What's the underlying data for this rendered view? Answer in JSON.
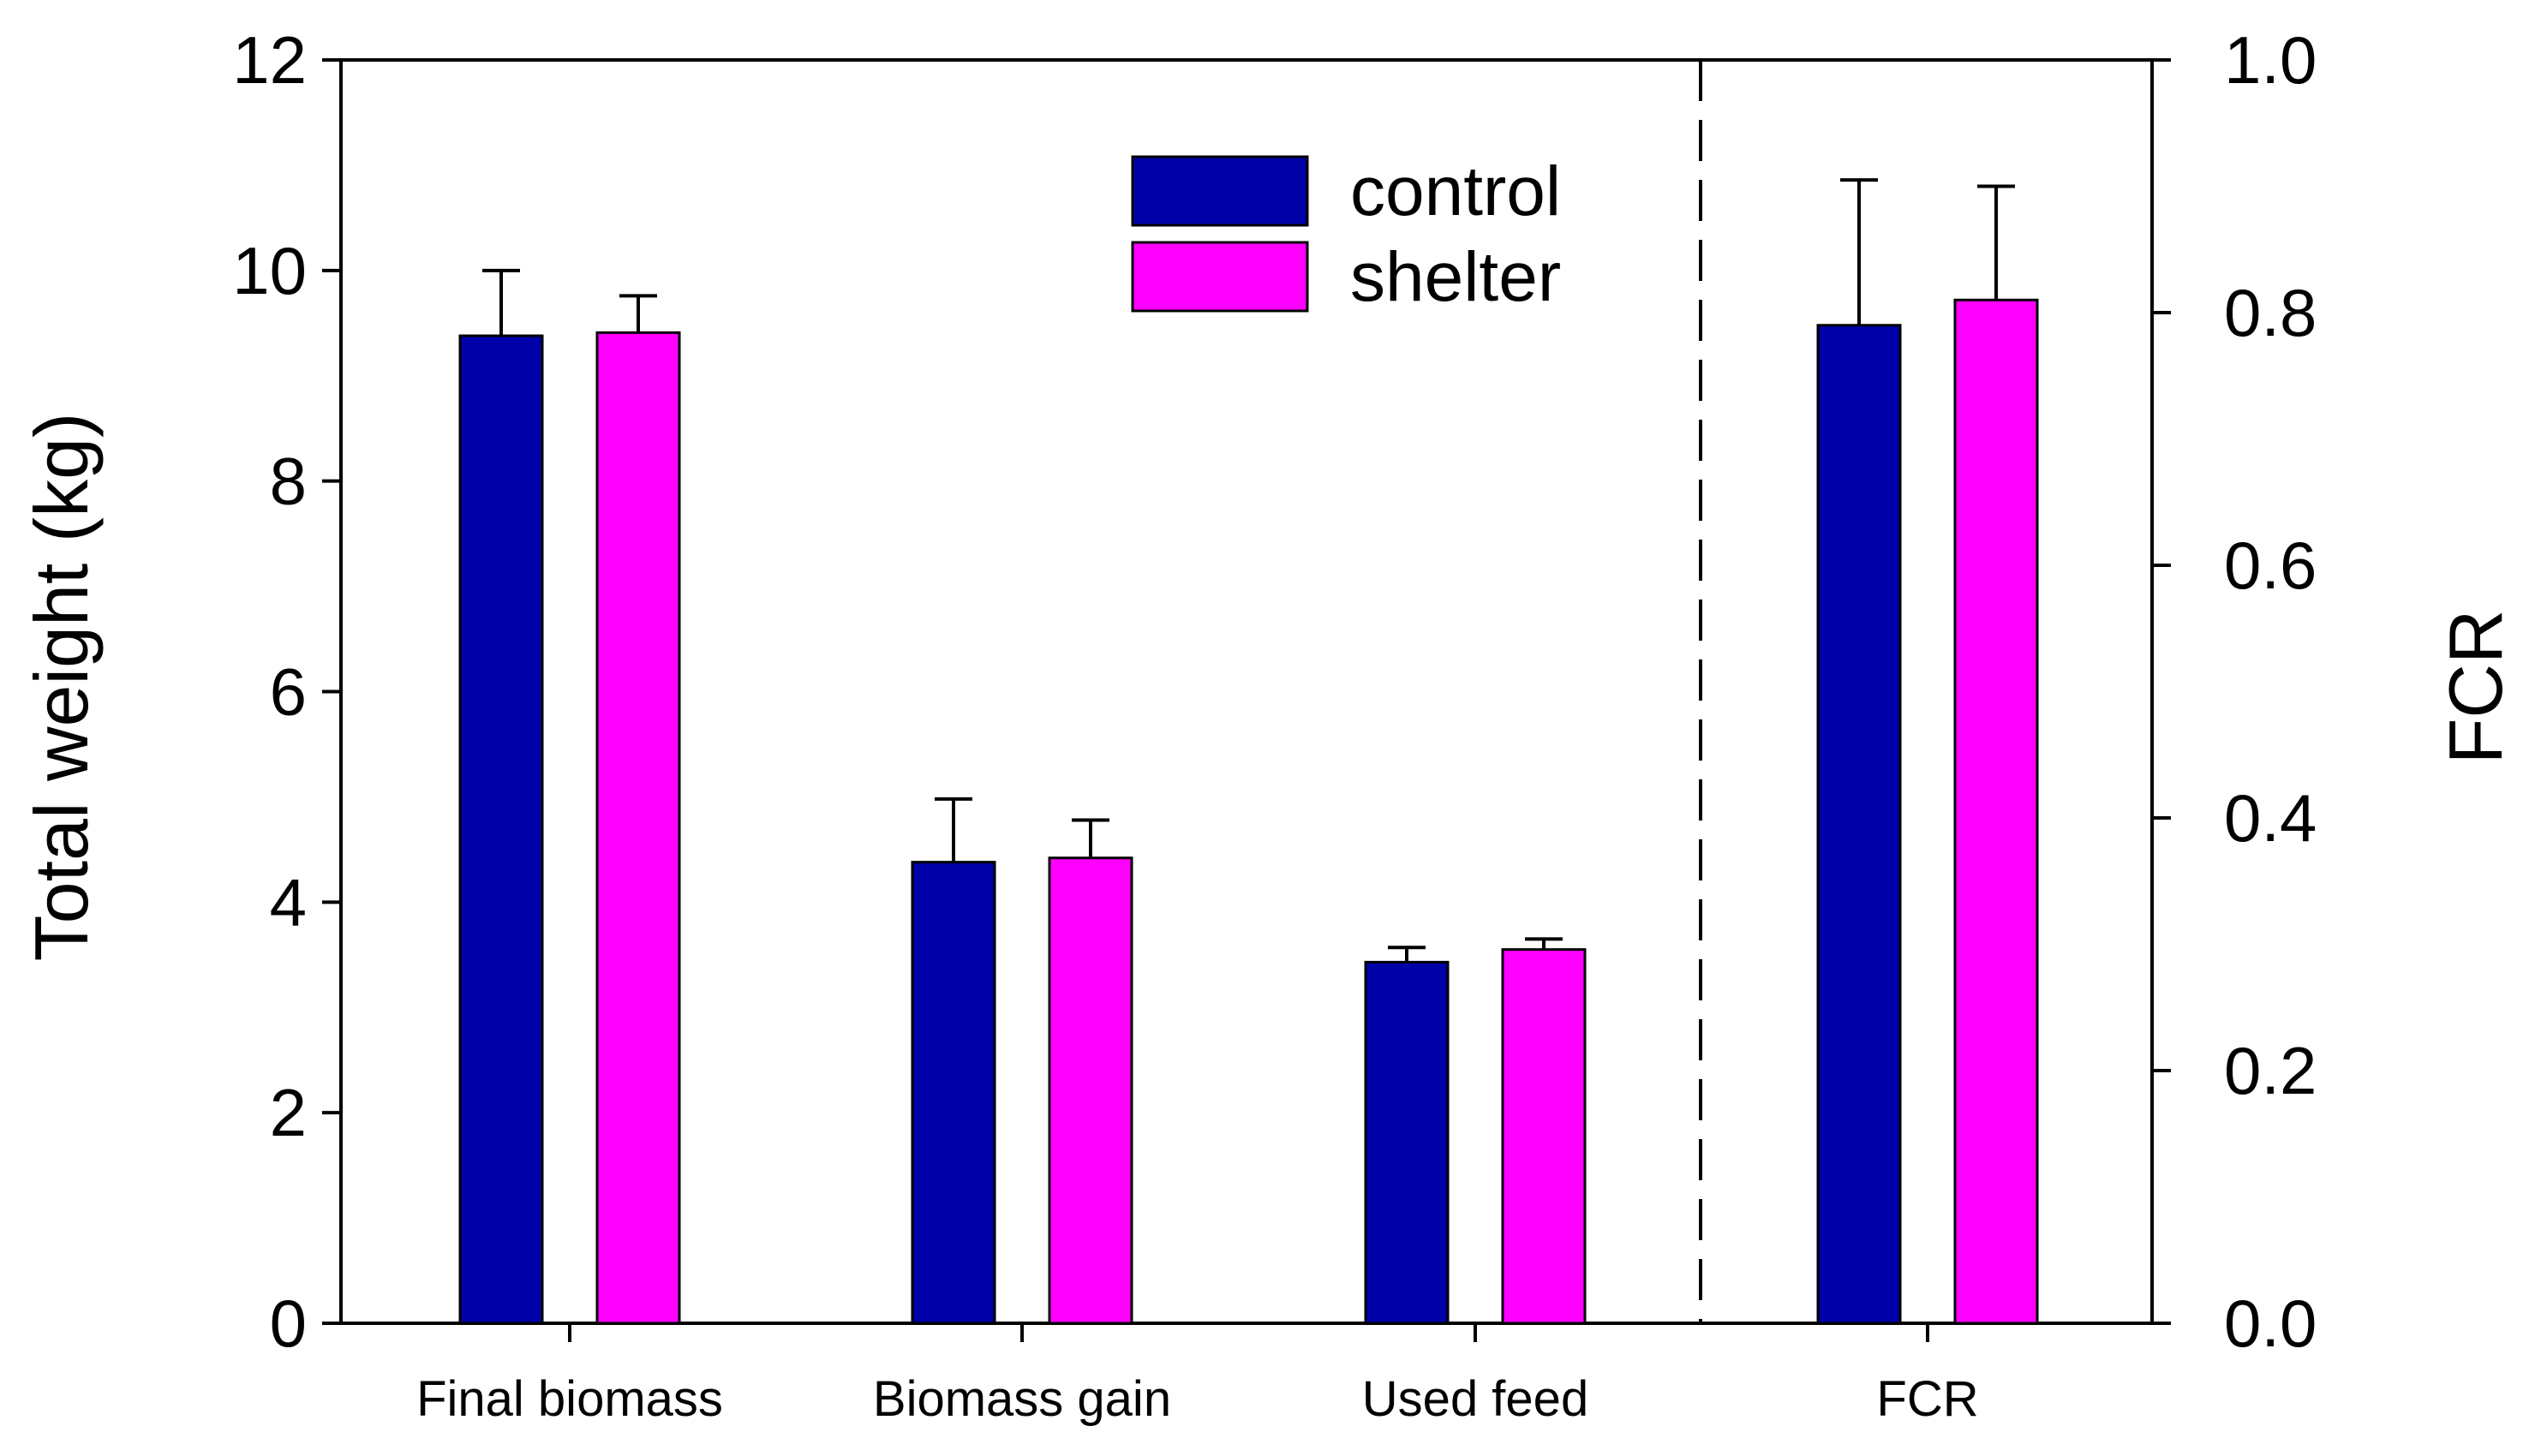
{
  "chart_data": {
    "type": "bar",
    "categories": [
      "Final biomass",
      "Biomass gain",
      "Used feed",
      "FCR"
    ],
    "series": [
      {
        "name": "control",
        "color": "#0000A8",
        "values": [
          9.38,
          4.38,
          3.43,
          0.79
        ],
        "errors": [
          0.62,
          0.6,
          0.14,
          0.115
        ]
      },
      {
        "name": "shelter",
        "color": "#FF00FF",
        "values": [
          9.41,
          4.42,
          3.55,
          0.81
        ],
        "errors": [
          0.35,
          0.36,
          0.1,
          0.09
        ]
      }
    ],
    "category_axis": [
      "left",
      "left",
      "left",
      "right"
    ],
    "y_left": {
      "label": "Total weight (kg)",
      "lim": [
        0,
        12
      ],
      "ticks": [
        0,
        2,
        4,
        6,
        8,
        10,
        12
      ],
      "tick_labels": [
        "0",
        "2",
        "4",
        "6",
        "8",
        "10",
        "12"
      ]
    },
    "y_right": {
      "label": "FCR",
      "lim": [
        0,
        1.0
      ],
      "ticks": [
        0,
        0.2,
        0.4,
        0.6,
        0.8,
        1.0
      ],
      "tick_labels": [
        "0.0",
        "0.2",
        "0.4",
        "0.6",
        "0.8",
        "1.0"
      ]
    },
    "legend": {
      "placement": "top-center",
      "entries": [
        "control",
        "shelter"
      ]
    },
    "divider": "dashed line between Used feed and FCR",
    "grid": false
  }
}
